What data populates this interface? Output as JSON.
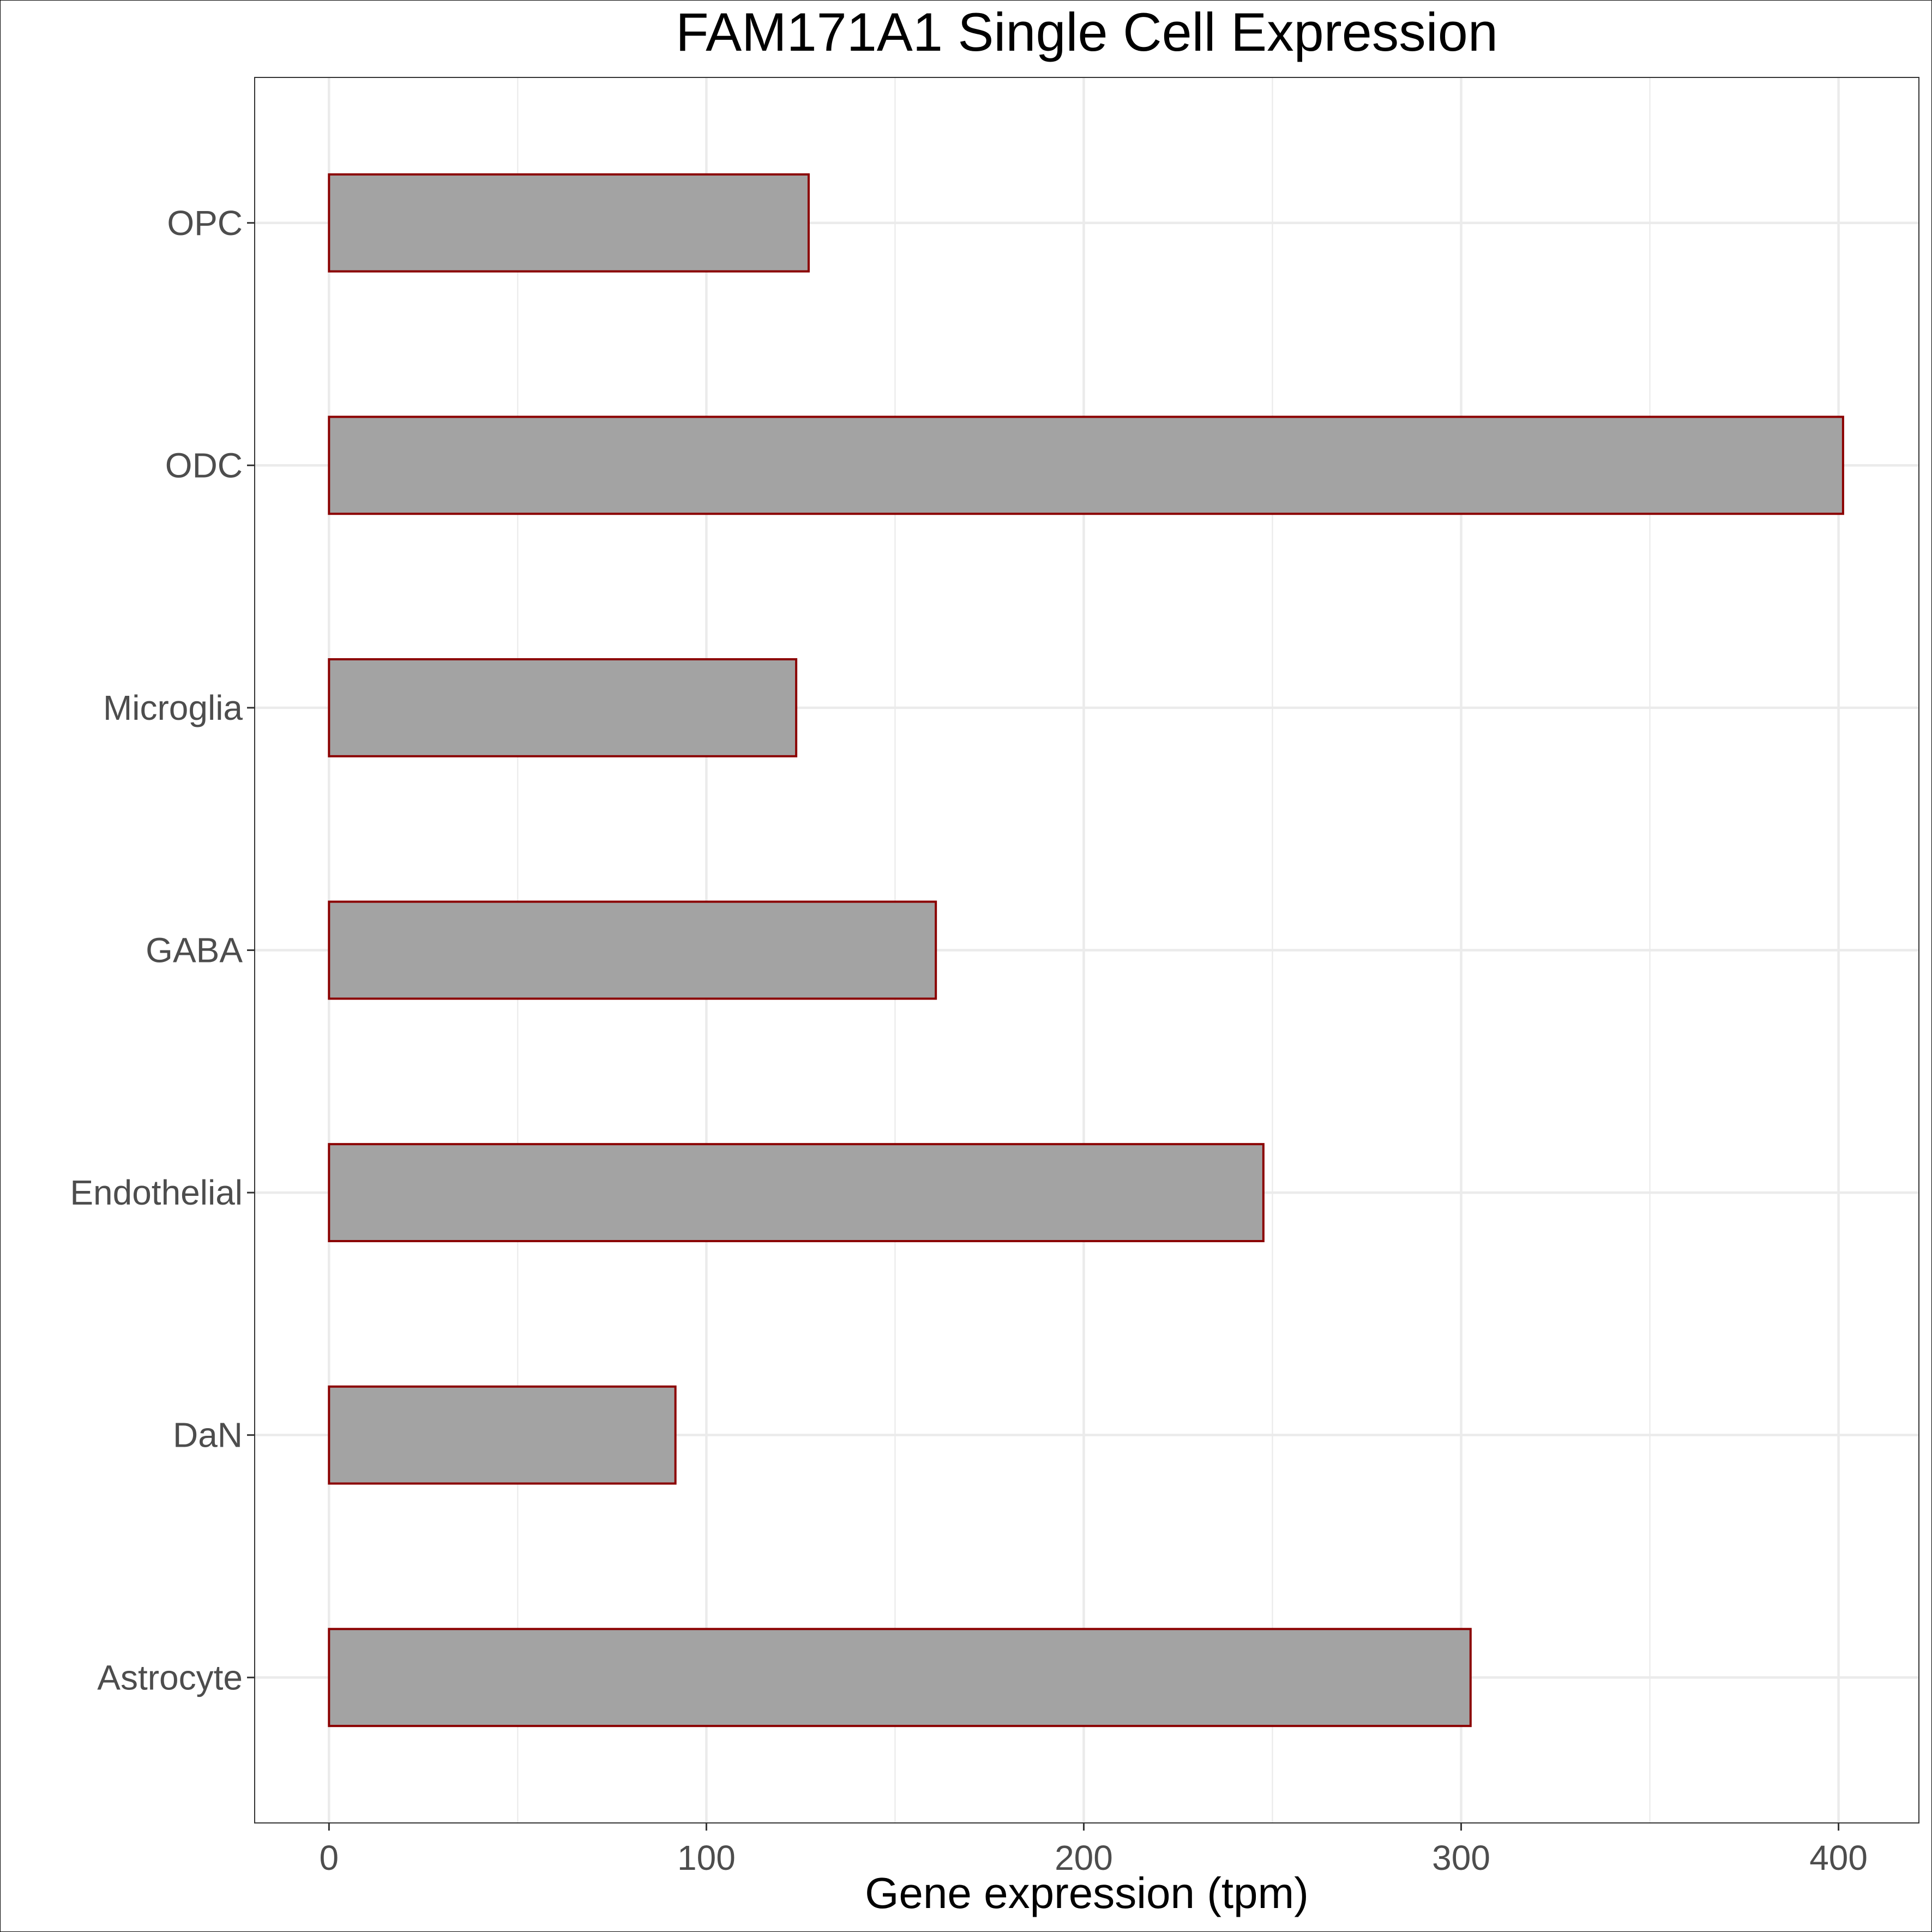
{
  "chart_data": {
    "type": "bar",
    "orientation": "horizontal",
    "title": "FAM171A1 Single Cell Expression",
    "xlabel": "Gene expression (tpm)",
    "ylabel": "",
    "categories": [
      "Astrocyte",
      "DaN",
      "Endothelial",
      "GABA",
      "Microglia",
      "ODC",
      "OPC"
    ],
    "values": [
      302.5,
      91.8,
      247.6,
      160.8,
      123.8,
      401.2,
      127.1
    ],
    "xlim": [
      -19.7,
      421.3
    ],
    "xticks": [
      0,
      100,
      200,
      300,
      400
    ],
    "grid": true,
    "legend": "none",
    "colors": {
      "bar_fill": "#a3a3a3",
      "bar_edge": "#8b0000",
      "grid": "#ebebeb",
      "panel_border": "#333333",
      "tick_text": "#4d4d4d"
    }
  }
}
